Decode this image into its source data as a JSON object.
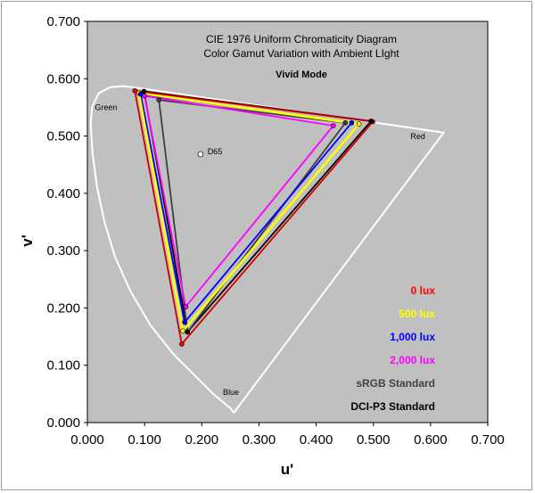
{
  "chart_data": {
    "type": "scatter",
    "title": "CIE 1976 Uniform Chromaticity Diagram",
    "subtitle": "Color Gamut Variation with Ambient LIght",
    "mode_label": "Vivid Mode",
    "xlabel": "u'",
    "ylabel": "v'",
    "xlim": [
      0.0,
      0.7
    ],
    "ylim": [
      0.0,
      0.7
    ],
    "x_ticks": [
      "0.000",
      "0.100",
      "0.200",
      "0.300",
      "0.400",
      "0.500",
      "0.600",
      "0.700"
    ],
    "y_ticks": [
      "0.000",
      "0.100",
      "0.200",
      "0.300",
      "0.400",
      "0.500",
      "0.600",
      "0.700"
    ],
    "plot_background": "#c0c0c0",
    "grid": false,
    "legend_position": "bottom-right",
    "annotations": [
      {
        "text": "Green",
        "u": 0.013,
        "v": 0.545
      },
      {
        "text": "Red",
        "u": 0.565,
        "v": 0.495
      },
      {
        "text": "Blue",
        "u": 0.237,
        "v": 0.048
      },
      {
        "text": "D65",
        "u": 0.21,
        "v": 0.468
      }
    ],
    "white_point": {
      "name": "D65",
      "u": 0.1978,
      "v": 0.4683
    },
    "locus": [
      [
        0.256,
        0.017
      ],
      [
        0.25,
        0.025
      ],
      [
        0.22,
        0.05
      ],
      [
        0.19,
        0.08
      ],
      [
        0.15,
        0.12
      ],
      [
        0.11,
        0.17
      ],
      [
        0.075,
        0.23
      ],
      [
        0.048,
        0.29
      ],
      [
        0.03,
        0.35
      ],
      [
        0.017,
        0.41
      ],
      [
        0.009,
        0.47
      ],
      [
        0.006,
        0.52
      ],
      [
        0.008,
        0.55
      ],
      [
        0.02,
        0.575
      ],
      [
        0.04,
        0.585
      ],
      [
        0.06,
        0.587
      ],
      [
        0.08,
        0.585
      ],
      [
        0.623,
        0.506
      ],
      [
        0.256,
        0.017
      ]
    ],
    "series": [
      {
        "name": "0 lux",
        "color": "#ff0000",
        "stroke": "#cc0000",
        "points": [
          [
            0.499,
            0.525
          ],
          [
            0.083,
            0.579
          ],
          [
            0.165,
            0.137
          ]
        ]
      },
      {
        "name": "500 lux",
        "color": "#ffff00",
        "stroke": "#ffff00",
        "points": [
          [
            0.475,
            0.521
          ],
          [
            0.09,
            0.575
          ],
          [
            0.167,
            0.16
          ]
        ]
      },
      {
        "name": "1,000 lux",
        "color": "#0000ff",
        "stroke": "#0000ff",
        "points": [
          [
            0.462,
            0.523
          ],
          [
            0.093,
            0.573
          ],
          [
            0.17,
            0.175
          ]
        ]
      },
      {
        "name": "2,000 lux",
        "color": "#ff00ff",
        "stroke": "#ff00ff",
        "points": [
          [
            0.43,
            0.518
          ],
          [
            0.1,
            0.57
          ],
          [
            0.172,
            0.202
          ]
        ]
      },
      {
        "name": "sRGB Standard",
        "color": "#404040",
        "stroke": "#404040",
        "points": [
          [
            0.451,
            0.523
          ],
          [
            0.125,
            0.563
          ],
          [
            0.175,
            0.158
          ]
        ]
      },
      {
        "name": "DCI-P3 Standard",
        "color": "#000000",
        "stroke": "#000000",
        "points": [
          [
            0.496,
            0.526
          ],
          [
            0.099,
            0.578
          ],
          [
            0.175,
            0.158
          ]
        ]
      }
    ]
  }
}
